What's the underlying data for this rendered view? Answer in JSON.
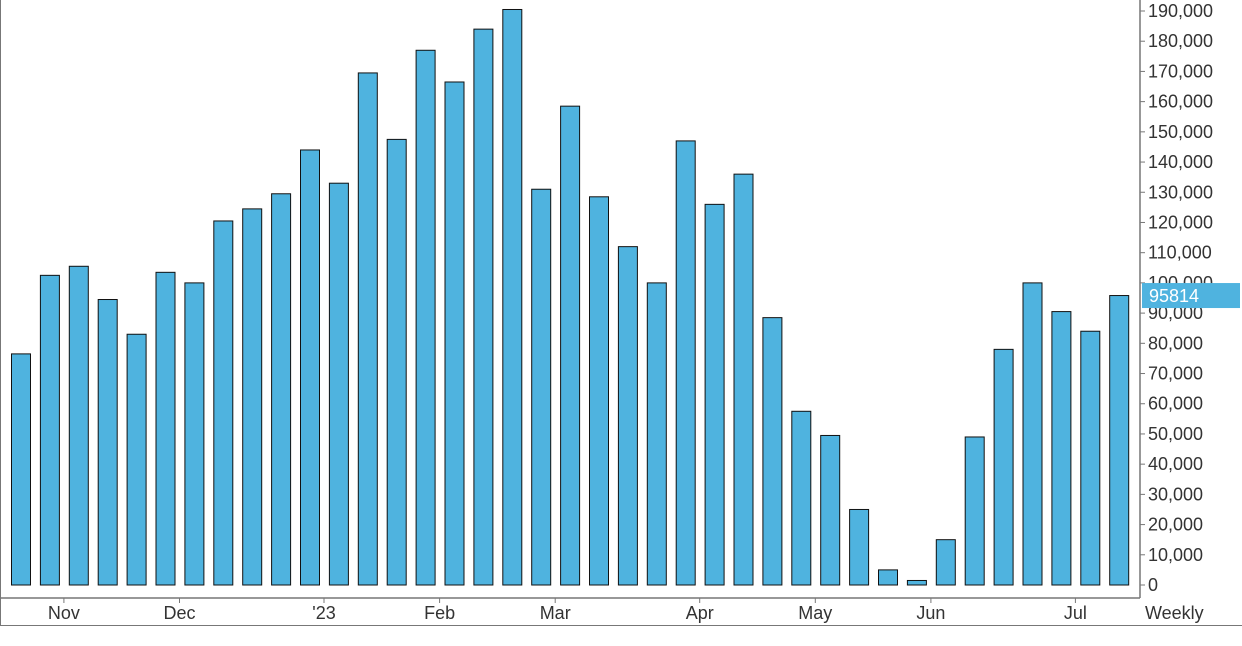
{
  "chart_data": {
    "type": "bar",
    "period_label": "Weekly",
    "x_tick_labels": [
      "Nov",
      "Dec",
      "'23",
      "Feb",
      "Mar",
      "Apr",
      "May",
      "Jun",
      "Jul"
    ],
    "x_tick_bar_index": [
      1,
      5,
      10,
      14,
      18,
      23,
      27,
      31,
      36
    ],
    "values": [
      76500,
      102500,
      105500,
      94500,
      83000,
      103500,
      100000,
      120500,
      124500,
      129500,
      144000,
      133000,
      169500,
      147500,
      177000,
      166500,
      184000,
      190500,
      131000,
      158500,
      128500,
      112000,
      100000,
      147000,
      126000,
      136000,
      88500,
      57500,
      49500,
      25000,
      5000,
      1500,
      15000,
      49000,
      78000,
      100000,
      90500,
      84000,
      95814
    ],
    "y_ticks": [
      0,
      10000,
      20000,
      30000,
      40000,
      50000,
      60000,
      70000,
      80000,
      90000,
      100000,
      110000,
      120000,
      130000,
      140000,
      150000,
      160000,
      170000,
      180000,
      190000
    ],
    "y_tick_labels": [
      "0",
      "10,000",
      "20,000",
      "30,000",
      "40,000",
      "50,000",
      "60,000",
      "70,000",
      "80,000",
      "90,000",
      "100,000",
      "110,000",
      "120,000",
      "130,000",
      "140,000",
      "150,000",
      "160,000",
      "170,000",
      "180,000",
      "190,000"
    ],
    "ylim": [
      0,
      192500
    ],
    "last_value_label": "95814",
    "bar_color": "#4FB3DF",
    "bar_edge_color": "#111111",
    "axis_color": "#777777",
    "last_tag_color": "#4FB3DF",
    "grid": false
  }
}
